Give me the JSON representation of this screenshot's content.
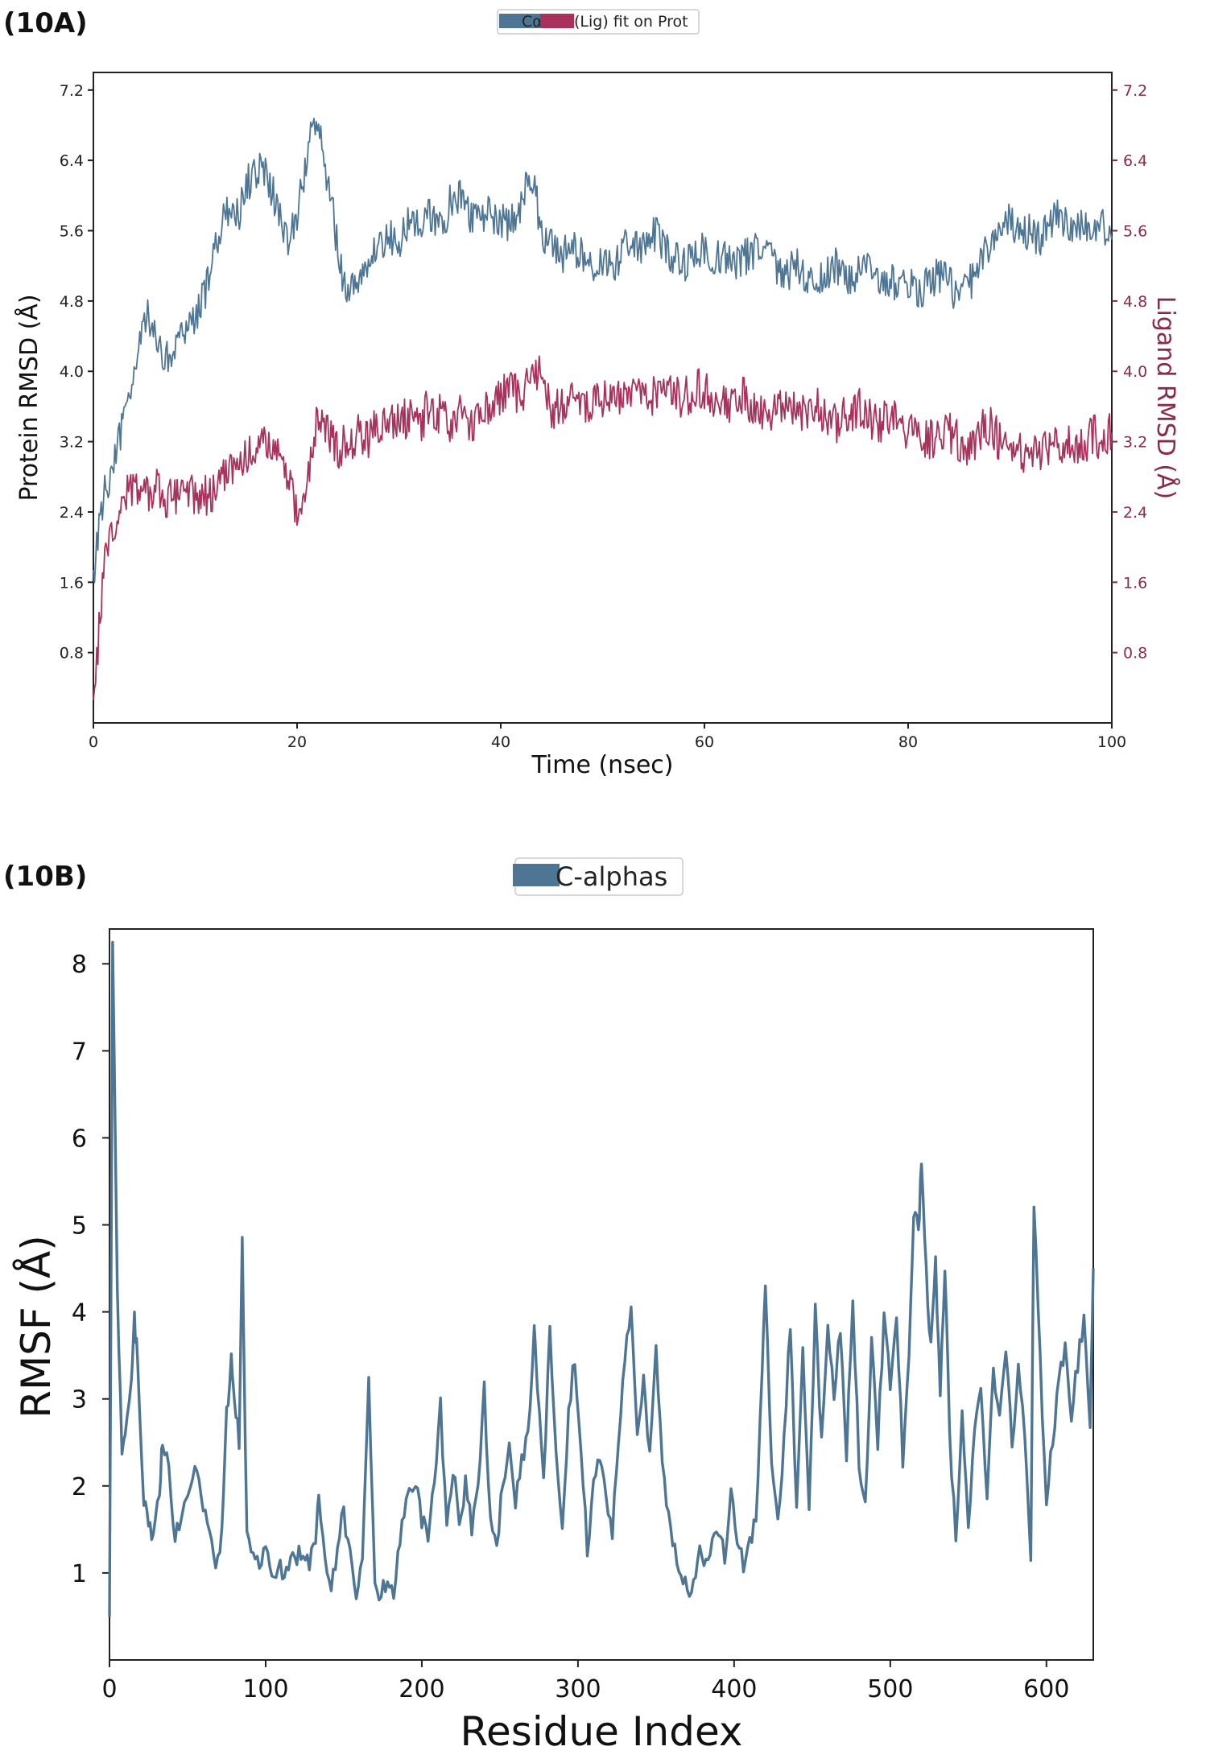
{
  "panels": {
    "a_label": "(10A)",
    "b_label": "(10B)"
  },
  "colors": {
    "protein": "#4e7694",
    "ligand": "#a8325c",
    "ligand_axis": "#8a2b49",
    "frame": "#222222"
  },
  "chart_data": [
    {
      "type": "line",
      "id": "10A",
      "legend": [
        {
          "label": "Cα",
          "color": "#4e7694"
        },
        {
          "label": "(Lig) fit on Prot",
          "color": "#a8325c"
        }
      ],
      "xlabel": "Time (nsec)",
      "ylabel": "Protein RMSD (Å)",
      "ylabel_right": "Ligand RMSD (Å)",
      "xlim": [
        0,
        100
      ],
      "ylim": [
        0,
        7.4
      ],
      "xticks": [
        "0",
        "20",
        "40",
        "60",
        "80",
        "100"
      ],
      "yticks": [
        "0.8",
        "1.6",
        "2.4",
        "3.2",
        "4.0",
        "4.8",
        "5.6",
        "6.4",
        "7.2"
      ],
      "series": [
        {
          "name": "Cα",
          "axis": "left",
          "x": [
            0,
            1,
            2,
            3,
            4,
            5,
            6,
            7,
            8,
            9,
            10,
            11,
            12,
            13,
            14,
            15,
            16,
            17,
            18,
            19,
            20,
            21,
            22,
            23,
            24,
            25,
            26,
            27,
            28,
            29,
            30,
            31,
            32,
            33,
            34,
            35,
            36,
            37,
            38,
            39,
            40,
            41,
            42,
            43,
            44,
            45,
            46,
            47,
            48,
            49,
            50,
            51,
            52,
            53,
            54,
            55,
            56,
            57,
            58,
            59,
            60,
            61,
            62,
            63,
            64,
            65,
            66,
            67,
            68,
            69,
            70,
            71,
            72,
            73,
            74,
            75,
            76,
            77,
            78,
            79,
            80,
            81,
            82,
            83,
            84,
            85,
            86,
            87,
            88,
            89,
            90,
            91,
            92,
            93,
            94,
            95,
            96,
            97,
            98,
            99,
            100
          ],
          "y": [
            1.7,
            2.6,
            3.0,
            3.4,
            3.9,
            4.7,
            4.4,
            4.1,
            4.3,
            4.5,
            4.6,
            4.9,
            5.4,
            5.8,
            5.7,
            6.1,
            6.3,
            6.2,
            5.9,
            5.5,
            5.7,
            6.5,
            6.9,
            6.2,
            5.4,
            4.8,
            5.1,
            5.3,
            5.4,
            5.5,
            5.5,
            5.7,
            5.6,
            5.8,
            5.6,
            5.9,
            6.0,
            5.8,
            5.7,
            5.8,
            5.7,
            5.7,
            5.9,
            6.3,
            5.6,
            5.4,
            5.3,
            5.4,
            5.3,
            5.2,
            5.3,
            5.2,
            5.4,
            5.5,
            5.4,
            5.6,
            5.4,
            5.3,
            5.2,
            5.3,
            5.4,
            5.3,
            5.3,
            5.2,
            5.3,
            5.4,
            5.3,
            5.2,
            5.1,
            5.2,
            5.1,
            5.0,
            5.1,
            5.2,
            5.0,
            5.1,
            5.2,
            5.1,
            5.0,
            5.0,
            5.0,
            4.9,
            5.0,
            5.1,
            5.0,
            4.8,
            5.0,
            5.2,
            5.4,
            5.6,
            5.7,
            5.5,
            5.6,
            5.5,
            5.7,
            5.8,
            5.6,
            5.7,
            5.6,
            5.7,
            5.5
          ]
        },
        {
          "name": "(Lig) fit on Prot",
          "axis": "right",
          "x": [
            0,
            1,
            2,
            3,
            4,
            5,
            6,
            7,
            8,
            9,
            10,
            11,
            12,
            13,
            14,
            15,
            16,
            17,
            18,
            19,
            20,
            21,
            22,
            23,
            24,
            25,
            26,
            27,
            28,
            29,
            30,
            31,
            32,
            33,
            34,
            35,
            36,
            37,
            38,
            39,
            40,
            41,
            42,
            43,
            44,
            45,
            46,
            47,
            48,
            49,
            50,
            51,
            52,
            53,
            54,
            55,
            56,
            57,
            58,
            59,
            60,
            61,
            62,
            63,
            64,
            65,
            66,
            67,
            68,
            69,
            70,
            71,
            72,
            73,
            74,
            75,
            76,
            77,
            78,
            79,
            80,
            81,
            82,
            83,
            84,
            85,
            86,
            87,
            88,
            89,
            90,
            91,
            92,
            93,
            94,
            95,
            96,
            97,
            98,
            99,
            100
          ],
          "y": [
            0.1,
            1.8,
            2.3,
            2.6,
            2.7,
            2.6,
            2.7,
            2.5,
            2.6,
            2.7,
            2.6,
            2.6,
            2.6,
            2.8,
            2.9,
            3.0,
            3.1,
            3.2,
            3.1,
            2.9,
            2.4,
            2.8,
            3.5,
            3.3,
            3.1,
            3.2,
            3.3,
            3.2,
            3.4,
            3.5,
            3.4,
            3.5,
            3.4,
            3.6,
            3.5,
            3.4,
            3.5,
            3.4,
            3.5,
            3.6,
            3.7,
            3.8,
            3.7,
            3.9,
            4.0,
            3.5,
            3.6,
            3.7,
            3.6,
            3.6,
            3.7,
            3.6,
            3.7,
            3.7,
            3.8,
            3.7,
            3.8,
            3.7,
            3.7,
            3.8,
            3.8,
            3.7,
            3.6,
            3.7,
            3.7,
            3.6,
            3.5,
            3.6,
            3.7,
            3.6,
            3.5,
            3.6,
            3.5,
            3.4,
            3.5,
            3.6,
            3.5,
            3.4,
            3.5,
            3.4,
            3.3,
            3.2,
            3.2,
            3.3,
            3.3,
            3.2,
            3.1,
            3.3,
            3.4,
            3.2,
            3.1,
            3.1,
            3.0,
            3.1,
            3.2,
            3.1,
            3.2,
            3.1,
            3.3,
            3.2,
            3.3
          ]
        }
      ]
    },
    {
      "type": "line",
      "id": "10B",
      "legend": [
        {
          "label": "C-alphas",
          "color": "#4e7694"
        }
      ],
      "xlabel": "Residue Index",
      "ylabel": "RMSF (Å)",
      "xlim": [
        0,
        630
      ],
      "ylim": [
        0,
        8.4
      ],
      "xticks": [
        "0",
        "100",
        "200",
        "300",
        "400",
        "500",
        "600"
      ],
      "yticks": [
        "1",
        "2",
        "3",
        "4",
        "5",
        "6",
        "7",
        "8"
      ],
      "series": [
        {
          "name": "C-alphas",
          "x": [
            0,
            2,
            5,
            8,
            10,
            14,
            16,
            18,
            22,
            25,
            28,
            32,
            34,
            38,
            42,
            46,
            52,
            56,
            60,
            64,
            68,
            72,
            75,
            78,
            80,
            83,
            85,
            88,
            92,
            96,
            100,
            104,
            108,
            112,
            116,
            120,
            124,
            128,
            132,
            134,
            138,
            142,
            146,
            150,
            154,
            158,
            162,
            166,
            170,
            174,
            178,
            182,
            186,
            190,
            196,
            200,
            204,
            208,
            212,
            216,
            220,
            224,
            228,
            232,
            236,
            240,
            244,
            248,
            252,
            256,
            260,
            264,
            268,
            272,
            274,
            278,
            282,
            286,
            290,
            294,
            298,
            302,
            306,
            310,
            314,
            318,
            322,
            326,
            330,
            334,
            338,
            342,
            346,
            350,
            354,
            358,
            362,
            366,
            370,
            374,
            378,
            382,
            386,
            390,
            394,
            398,
            402,
            406,
            410,
            414,
            418,
            420,
            424,
            428,
            432,
            436,
            440,
            444,
            448,
            452,
            456,
            460,
            464,
            468,
            472,
            476,
            480,
            484,
            488,
            492,
            496,
            500,
            504,
            508,
            512,
            515,
            518,
            520,
            523,
            526,
            529,
            532,
            535,
            538,
            542,
            546,
            550,
            554,
            558,
            562,
            566,
            570,
            574,
            578,
            582,
            586,
            590,
            592,
            596,
            600,
            604,
            608,
            612,
            616,
            620,
            624,
            628,
            630
          ],
          "y": [
            0.5,
            8.2,
            4.3,
            2.4,
            2.6,
            3.2,
            3.9,
            3.5,
            1.8,
            1.6,
            1.4,
            2.0,
            2.5,
            2.2,
            1.4,
            1.6,
            2.1,
            2.2,
            1.8,
            1.4,
            1.0,
            1.5,
            2.8,
            3.5,
            3.0,
            2.5,
            4.8,
            1.4,
            1.2,
            1.1,
            1.2,
            1.0,
            1.1,
            0.9,
            1.1,
            1.2,
            1.3,
            1.1,
            1.4,
            1.8,
            1.1,
            0.8,
            1.3,
            1.7,
            1.2,
            0.8,
            1.2,
            3.2,
            0.9,
            0.7,
            1.0,
            0.8,
            1.4,
            1.8,
            2.1,
            1.6,
            1.4,
            2.0,
            2.9,
            1.5,
            2.2,
            1.6,
            2.0,
            1.5,
            1.9,
            3.1,
            1.6,
            1.3,
            2.1,
            2.4,
            1.8,
            2.3,
            2.6,
            3.8,
            3.2,
            2.0,
            3.8,
            2.4,
            1.6,
            2.8,
            3.5,
            2.4,
            1.3,
            2.0,
            2.4,
            1.9,
            1.5,
            2.5,
            3.4,
            4.1,
            2.5,
            3.2,
            2.4,
            3.6,
            2.3,
            1.6,
            1.3,
            1.0,
            0.8,
            0.9,
            1.3,
            1.1,
            1.4,
            1.5,
            1.2,
            1.9,
            1.3,
            1.1,
            1.3,
            1.6,
            3.3,
            4.3,
            2.2,
            1.6,
            2.5,
            3.9,
            1.7,
            3.6,
            1.8,
            4.0,
            2.5,
            3.9,
            3.1,
            3.8,
            2.4,
            4.1,
            2.3,
            1.8,
            3.7,
            2.5,
            3.9,
            3.2,
            4.0,
            2.3,
            3.5,
            5.2,
            4.9,
            5.7,
            4.4,
            3.6,
            4.6,
            3.1,
            4.5,
            2.6,
            1.4,
            2.9,
            1.6,
            2.6,
            3.2,
            1.8,
            3.3,
            2.7,
            3.5,
            2.5,
            3.3,
            2.6,
            1.2,
            5.3,
            3.4,
            1.9,
            2.5,
            3.3,
            3.6,
            2.8,
            3.4,
            3.9,
            2.6,
            4.5
          ]
        }
      ]
    }
  ]
}
